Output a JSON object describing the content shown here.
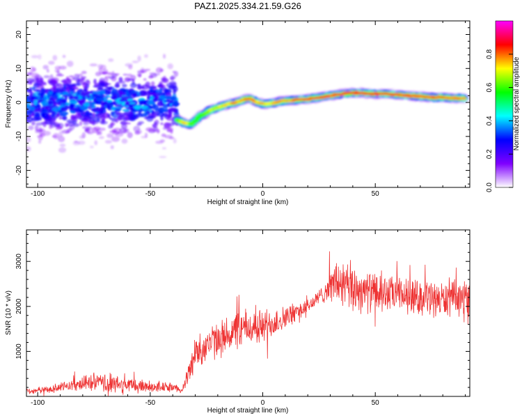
{
  "figure_title": "PAZ1.2025.334.21.59.G26",
  "chart_data": [
    {
      "type": "heatmap",
      "title": "PAZ1.2025.334.21.59.G26",
      "xlabel": "Height of straight line (km)",
      "ylabel": "Frequency (Hz)",
      "xlim": [
        -105,
        92
      ],
      "ylim": [
        -25,
        24
      ],
      "xticks": [
        -100,
        -50,
        0,
        50
      ],
      "xtick_labels": [
        "-100",
        "-50",
        "0",
        "50"
      ],
      "yticks": [
        -20,
        -10,
        0,
        10,
        20
      ],
      "ytick_labels": [
        "-20",
        "-10",
        "0",
        "10",
        "20"
      ],
      "ridge": {
        "x": [
          -38,
          -35,
          -32,
          -30,
          -28,
          -26,
          -24,
          -22,
          -20,
          -18,
          -15,
          -12,
          -10,
          -8,
          -6,
          -4,
          -2,
          0,
          3,
          6,
          9,
          12,
          16,
          20,
          25,
          30,
          35,
          40,
          45,
          50,
          55,
          60,
          65,
          70,
          75,
          80,
          85,
          90
        ],
        "freq": [
          -5.0,
          -6.0,
          -6.5,
          -5.5,
          -4.0,
          -3.5,
          -2.5,
          -2.0,
          -1.5,
          -1.0,
          -0.5,
          0.0,
          0.3,
          1.0,
          1.2,
          0.5,
          0.0,
          -0.5,
          -0.3,
          0.0,
          0.5,
          0.5,
          0.8,
          1.0,
          1.5,
          2.0,
          2.5,
          2.8,
          2.8,
          2.5,
          2.5,
          2.3,
          2.0,
          1.8,
          1.5,
          1.5,
          1.3,
          1.2
        ],
        "amplitude": [
          0.5,
          0.7,
          0.55,
          0.45,
          0.5,
          0.55,
          0.6,
          0.6,
          0.62,
          0.65,
          0.7,
          0.75,
          0.7,
          0.72,
          0.78,
          0.7,
          0.7,
          0.74,
          0.65,
          0.72,
          0.75,
          0.72,
          0.8,
          0.82,
          0.85,
          0.78,
          0.8,
          0.82,
          0.8,
          0.83,
          0.82,
          0.8,
          0.78,
          0.76,
          0.78,
          0.76,
          0.75,
          0.74
        ]
      },
      "noise_region_x": [
        -105,
        -38
      ],
      "colorbar": {
        "label": "Normalized spectral amplitude",
        "range": [
          0,
          1
        ],
        "ticks": [
          0.0,
          0.2,
          0.4,
          0.6,
          0.8
        ],
        "tick_labels": [
          "0.0",
          "0.2",
          "0.4",
          "0.6",
          "0.8"
        ],
        "colors": [
          "#ffffff",
          "#7f00ff",
          "#0000ff",
          "#00ffff",
          "#00ff00",
          "#ffff00",
          "#ff0000",
          "#ff00ff"
        ]
      }
    },
    {
      "type": "line",
      "xlabel": "Height of straight line (km)",
      "ylabel": "SNR (10 * v/v)",
      "xlim": [
        -105,
        92
      ],
      "ylim": [
        0,
        3700
      ],
      "xticks": [
        -100,
        -50,
        0,
        50
      ],
      "xtick_labels": [
        "-100",
        "-50",
        "0",
        "50"
      ],
      "yticks": [
        1000,
        2000,
        3000
      ],
      "ytick_labels": [
        "1000",
        "2000",
        "3000"
      ],
      "color": "#ee3333",
      "envelope": {
        "x": [
          -105,
          -95,
          -85,
          -75,
          -70,
          -60,
          -50,
          -40,
          -36,
          -33,
          -30,
          -25,
          -20,
          -10,
          0,
          10,
          20,
          25,
          30,
          33,
          37,
          40,
          45,
          50,
          60,
          70,
          80,
          92
        ],
        "mean": [
          120,
          150,
          250,
          320,
          280,
          250,
          220,
          200,
          150,
          500,
          950,
          1150,
          1250,
          1500,
          1550,
          1750,
          2000,
          2200,
          2450,
          2550,
          2400,
          2400,
          2350,
          2300,
          2250,
          2200,
          2150,
          2200
        ],
        "amplitude": [
          70,
          90,
          140,
          220,
          250,
          200,
          160,
          110,
          70,
          250,
          450,
          450,
          450,
          500,
          450,
          300,
          200,
          200,
          350,
          650,
          700,
          650,
          550,
          500,
          450,
          450,
          450,
          450
        ]
      }
    }
  ]
}
